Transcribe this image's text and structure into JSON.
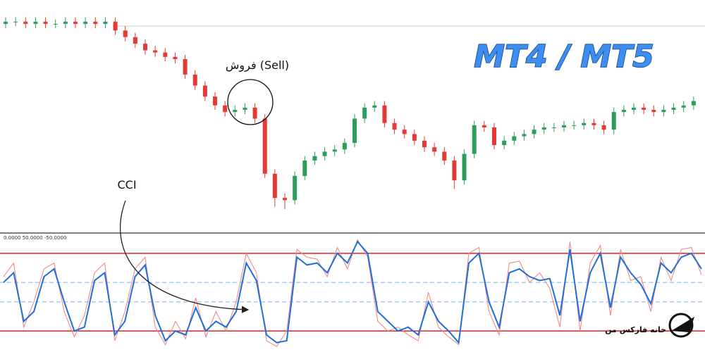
{
  "title": "MT4 / MT5",
  "annotations": {
    "sell": "فروش (Sell)",
    "cci": "CCI"
  },
  "logo": "خانه فارکس من",
  "chart_data": [
    {
      "type": "candlestick",
      "ylim": [
        0,
        100
      ],
      "up_color": "#2e9d5b",
      "down_color": "#e53935",
      "open": [
        93,
        94,
        94,
        93,
        94,
        93,
        93,
        94,
        93,
        94,
        93,
        94,
        90,
        87,
        84,
        81,
        80,
        78,
        77,
        70,
        65,
        60,
        56,
        53,
        54,
        55,
        50,
        25,
        14,
        13,
        24,
        31,
        33,
        35,
        36,
        39,
        50,
        55,
        56,
        48,
        45,
        43,
        40,
        37,
        35,
        31,
        22,
        34,
        47,
        46,
        38,
        40,
        42,
        43,
        45,
        46,
        46,
        47,
        47,
        48,
        47,
        45,
        53,
        54,
        55,
        54,
        53,
        54,
        55,
        56
      ],
      "high": [
        96,
        96,
        96,
        96,
        96,
        95,
        96,
        96,
        96,
        96,
        96,
        96,
        92,
        89,
        86,
        83,
        82,
        80,
        79,
        72,
        67,
        62,
        58,
        56,
        57,
        57,
        52,
        27,
        16,
        26,
        33,
        35,
        37,
        38,
        41,
        52,
        57,
        58,
        58,
        50,
        47,
        45,
        42,
        39,
        37,
        33,
        36,
        49,
        49,
        48,
        42,
        44,
        45,
        47,
        48,
        48,
        49,
        49,
        50,
        50,
        49,
        55,
        56,
        57,
        57,
        56,
        56,
        57,
        58,
        60
      ],
      "low": [
        91,
        92,
        91,
        91,
        91,
        91,
        91,
        91,
        91,
        91,
        91,
        88,
        85,
        82,
        79,
        78,
        76,
        75,
        68,
        63,
        58,
        54,
        51,
        51,
        52,
        48,
        23,
        10,
        9,
        11,
        22,
        29,
        31,
        33,
        34,
        37,
        48,
        53,
        46,
        43,
        41,
        38,
        35,
        33,
        29,
        18,
        20,
        32,
        44,
        36,
        36,
        38,
        40,
        41,
        43,
        44,
        44,
        45,
        45,
        45,
        43,
        43,
        51,
        52,
        52,
        51,
        51,
        52,
        53,
        54
      ],
      "close": [
        94,
        94,
        93,
        94,
        93,
        93,
        94,
        93,
        94,
        93,
        94,
        90,
        87,
        84,
        81,
        80,
        78,
        77,
        70,
        65,
        60,
        56,
        53,
        54,
        55,
        50,
        25,
        14,
        13,
        24,
        31,
        33,
        35,
        36,
        39,
        50,
        55,
        56,
        48,
        45,
        43,
        40,
        37,
        35,
        31,
        22,
        34,
        47,
        46,
        38,
        40,
        42,
        43,
        45,
        46,
        46,
        47,
        47,
        48,
        47,
        45,
        53,
        54,
        55,
        54,
        53,
        54,
        55,
        56,
        58
      ]
    },
    {
      "type": "line",
      "levels_label": "0.0000 50.0000 -50.0000",
      "ylim": [
        -290,
        290
      ],
      "levels": [
        200,
        -200
      ],
      "level_color": "#e02020",
      "dashed_levels": [
        50,
        -50
      ],
      "dashed_color": "#8cb8f0",
      "series": [
        {
          "color": "#1e6fd9",
          "values": [
            50,
            100,
            -150,
            -100,
            80,
            120,
            -50,
            -200,
            -180,
            60,
            100,
            -220,
            -150,
            80,
            140,
            -120,
            -250,
            -200,
            -220,
            -80,
            -200,
            -150,
            -180,
            -100,
            150,
            60,
            -220,
            -260,
            -250,
            180,
            140,
            150,
            100,
            200,
            150,
            260,
            200,
            -100,
            -150,
            -200,
            -180,
            -220,
            -50,
            -150,
            -200,
            -260,
            150,
            200,
            -50,
            -180,
            100,
            120,
            80,
            60,
            70,
            -120,
            220,
            -150,
            100,
            200,
            -80,
            180,
            100,
            40,
            -60,
            150,
            100,
            180,
            200,
            120
          ]
        },
        {
          "color": "#f08a8a",
          "values": [
            80,
            150,
            -180,
            -50,
            120,
            150,
            -100,
            -230,
            -120,
            100,
            150,
            -250,
            -100,
            120,
            180,
            -180,
            -270,
            -150,
            -240,
            -30,
            -230,
            -100,
            -200,
            -50,
            200,
            100,
            -250,
            -280,
            -200,
            220,
            180,
            170,
            80,
            230,
            120,
            270,
            180,
            -150,
            -200,
            -180,
            -220,
            -250,
            0,
            -180,
            -230,
            -270,
            200,
            230,
            -100,
            -220,
            150,
            160,
            50,
            100,
            20,
            -180,
            260,
            -200,
            150,
            240,
            -120,
            220,
            60,
            80,
            -100,
            180,
            60,
            220,
            230,
            90
          ]
        }
      ]
    }
  ]
}
